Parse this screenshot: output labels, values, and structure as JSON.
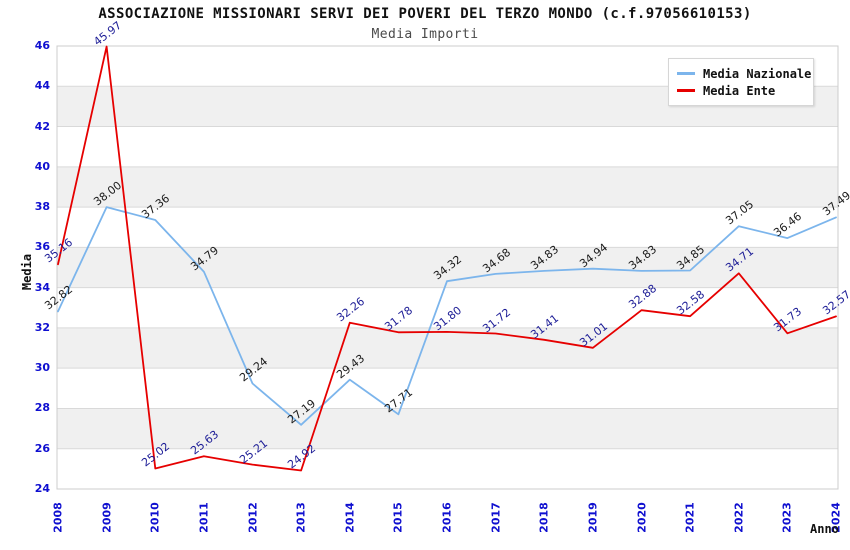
{
  "header": {
    "title": "ASSOCIAZIONE MISSIONARI SERVI DEI POVERI DEL TERZO MONDO (c.f.97056610153)",
    "subtitle": "Media Importi"
  },
  "chart_data": {
    "type": "line",
    "x": [
      2008,
      2009,
      2010,
      2011,
      2012,
      2013,
      2014,
      2015,
      2016,
      2017,
      2018,
      2019,
      2020,
      2021,
      2022,
      2023,
      2024
    ],
    "series": [
      {
        "name": "Media Nazionale",
        "color": "#7cb5ec",
        "label_color": "#1a1a1a",
        "values": [
          32.82,
          38.0,
          37.36,
          34.79,
          29.24,
          27.19,
          29.43,
          27.71,
          34.32,
          34.68,
          34.83,
          34.94,
          34.83,
          34.85,
          37.05,
          36.46,
          37.49
        ]
      },
      {
        "name": "Media Ente",
        "color": "#e60000",
        "label_color": "#1c1c96",
        "values": [
          35.16,
          45.97,
          25.02,
          25.63,
          25.21,
          24.92,
          32.26,
          31.78,
          31.8,
          31.72,
          31.41,
          31.01,
          32.88,
          32.58,
          34.71,
          31.73,
          32.57
        ]
      }
    ],
    "xlabel": "Anno",
    "ylabel": "Media",
    "ylim": [
      24,
      46
    ],
    "ytick_step": 2,
    "grid": "horizontal gridlines with alternating shaded bands",
    "legend_position": "top-right",
    "point_labels": "each point labeled with value, rotated"
  },
  "colors": {
    "axis_tick_text": "#0f0fd0",
    "band_shade": "#f0f0f0",
    "gridline": "#d9d9d9",
    "plot_border": "#cccccc"
  }
}
